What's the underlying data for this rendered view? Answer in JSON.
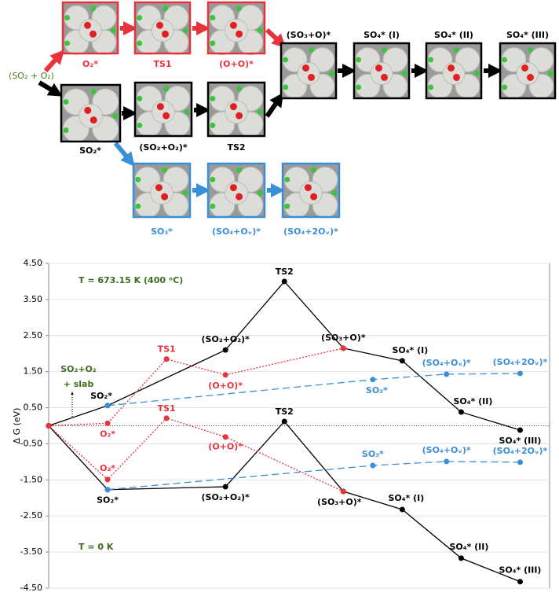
{
  "scheme": {
    "reactant": "(SO₂ + O₂)",
    "panels": [
      "O₂*",
      "TS1",
      "(O+O)*",
      "(SO₃+O)*",
      "SO₄* (I)",
      "SO₄* (II)",
      "SO₄* (III)",
      "SO₂*",
      "(SO₂+O₂)*",
      "TS2",
      "SO₃*",
      "(SO₄+Oᵥ)*",
      "(SO₄+2Oᵥ)*"
    ]
  },
  "chart_data": {
    "type": "line",
    "y_label": "Δ G (eV)",
    "ylim": [
      -4.5,
      4.5
    ],
    "yticks": [
      {
        "value": 4.5,
        "label": "4.50"
      },
      {
        "value": 3.5,
        "label": "3.50"
      },
      {
        "value": 2.5,
        "label": "2.50"
      },
      {
        "value": 1.5,
        "label": "1.50"
      },
      {
        "value": 0.5,
        "label": "0.50"
      },
      {
        "value": -0.5,
        "label": "-0.50"
      },
      {
        "value": -1.5,
        "label": "-1.50"
      },
      {
        "value": -2.5,
        "label": "-2.50"
      },
      {
        "value": -3.5,
        "label": "-3.50"
      },
      {
        "value": -4.5,
        "label": "-4.50"
      }
    ],
    "xlim": [
      0,
      8.5
    ],
    "grid": true,
    "reference_line": 0,
    "annotations": [
      "T = 673.15 K (400 ᵒC)",
      "T = 0 K",
      "SO₂+O₂",
      "+ slab"
    ],
    "series": [
      {
        "color": "#000000",
        "dash": "solid",
        "x": [
          0,
          1,
          3,
          4,
          5,
          6,
          7,
          8
        ],
        "values": [
          0,
          0.56,
          2.1,
          4.0,
          2.15,
          1.8,
          0.38,
          -0.12
        ],
        "labels": [
          null,
          "SO₂*",
          "(SO₂+O₂)*",
          "TS2",
          "(SO₃+O)*",
          "SO₄* (I)",
          "SO₄* (II)",
          "SO₄* (III)"
        ]
      },
      {
        "color": "#e8323c",
        "dash": "dotted",
        "x": [
          0,
          1,
          2,
          3,
          5
        ],
        "values": [
          0,
          0.07,
          1.85,
          1.41,
          2.15
        ],
        "labels": [
          null,
          "O₂*",
          "TS1",
          "(O+O)*",
          null
        ]
      },
      {
        "color": "#3a8fd9",
        "dash": "dashed",
        "x": [
          1,
          5.5,
          6.75,
          8
        ],
        "values": [
          0.56,
          1.28,
          1.43,
          1.45
        ],
        "labels": [
          null,
          "SO₃*",
          "(SO₄+Oᵥ)*",
          "(SO₄+2Oᵥ)*"
        ]
      },
      {
        "color": "#000000",
        "dash": "solid",
        "x": [
          0,
          1,
          3,
          4,
          5,
          6,
          7,
          8
        ],
        "values": [
          0,
          -1.77,
          -1.69,
          0.12,
          -1.82,
          -2.32,
          -3.67,
          -4.32
        ],
        "labels": [
          null,
          "SO₂*",
          "(SO₂+O₂)*",
          "TS2",
          "(SO₃+O)*",
          "SO₄* (I)",
          "SO₄* (II)",
          "SO₄* (III)"
        ]
      },
      {
        "color": "#e8323c",
        "dash": "dotted",
        "x": [
          0,
          1,
          2,
          3,
          5
        ],
        "values": [
          0,
          -1.49,
          0.21,
          -0.31,
          -1.82
        ],
        "labels": [
          null,
          "O₂*",
          "TS1",
          "(O+O)*",
          null
        ]
      },
      {
        "color": "#3a8fd9",
        "dash": "dashed",
        "x": [
          1,
          5.5,
          6.75,
          8
        ],
        "values": [
          -1.77,
          -1.1,
          -0.99,
          -1.01
        ],
        "labels": [
          null,
          "SO₃*",
          "(SO₄+Oᵥ)*",
          "(SO₄+2Oᵥ)*"
        ]
      }
    ]
  }
}
